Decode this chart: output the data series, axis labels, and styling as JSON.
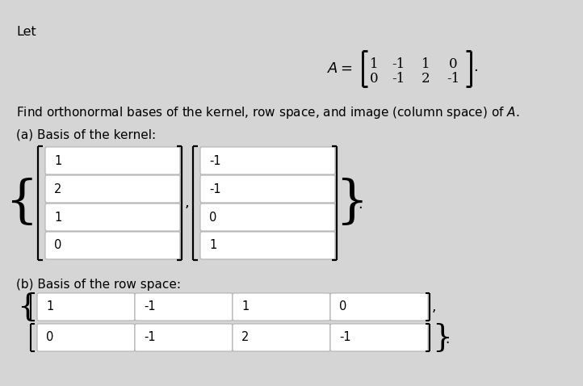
{
  "bg_color": "#d5d5d5",
  "white": "#ffffff",
  "text_color": "#000000",
  "title_text": "Let",
  "matrix_row1": [
    "1",
    "-1",
    "1",
    "0"
  ],
  "matrix_row2": [
    "0",
    "-1",
    "2",
    "-1"
  ],
  "find_text": "Find orthonormal bases of the kernel, row space, and image (column space) of  ",
  "find_italic": "A",
  "find_end": ".",
  "part_a_label": "(a) Basis of the kernel:",
  "kernel_vec1": [
    "1",
    "2",
    "1",
    "0"
  ],
  "kernel_vec2": [
    "-1",
    "-1",
    "0",
    "1"
  ],
  "part_b_label": "(b) Basis of the row space:",
  "row_vec1": [
    "1",
    "-1",
    "1",
    "0"
  ],
  "row_vec2": [
    "0",
    "-1",
    "2",
    "-1"
  ],
  "figw": 7.22,
  "figh": 4.78,
  "dpi": 100
}
